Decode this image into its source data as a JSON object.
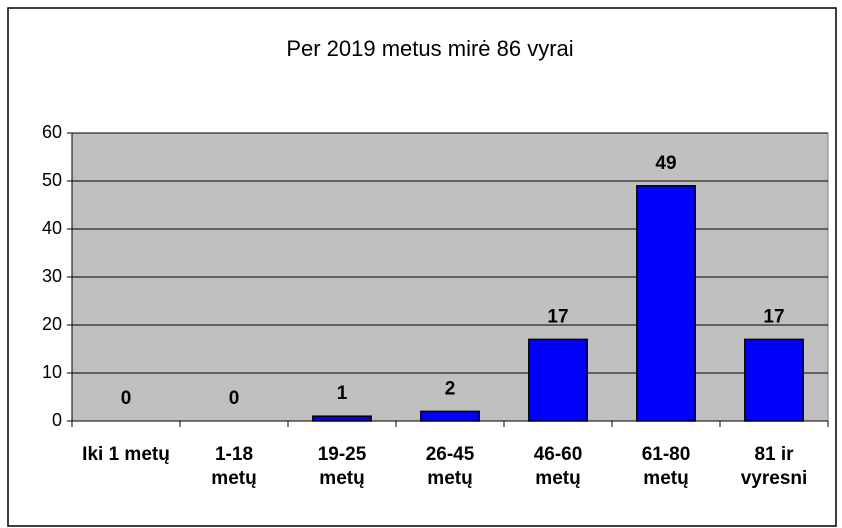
{
  "chart_data": {
    "type": "bar",
    "title": "Per 2019 metus mirė 86 vyrai",
    "categories": [
      "Iki 1 metų",
      "1-18\nmetų",
      "19-25\nmetų",
      "26-45\nmetų",
      "46-60\nmetų",
      "61-80\nmetų",
      "81 ir\nvyresni"
    ],
    "values": [
      0,
      0,
      1,
      2,
      17,
      49,
      17
    ],
    "color": "#0000ff",
    "ylim": [
      0,
      60
    ],
    "yticks": [
      0,
      10,
      20,
      30,
      40,
      50,
      60
    ],
    "grid": true
  }
}
